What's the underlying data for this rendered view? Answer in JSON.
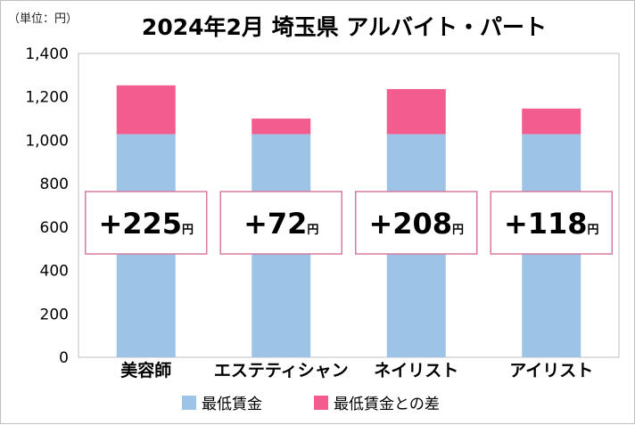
{
  "chart_data": {
    "type": "bar",
    "stacked": true,
    "title": "2024年2月 埼玉県 アルバイト・パート",
    "unit_label": "（単位：円）",
    "categories": [
      "美容師",
      "エステティシャン",
      "ネイリスト",
      "アイリスト"
    ],
    "series": [
      {
        "name": "最低賃金",
        "values": [
          1028,
          1028,
          1028,
          1028
        ],
        "color": "#9dc3e6"
      },
      {
        "name": "最低賃金との差",
        "values": [
          225,
          72,
          208,
          118
        ],
        "color": "#f25c8e"
      }
    ],
    "annotations": [
      {
        "prefix": "+",
        "value": "225",
        "suffix": "円"
      },
      {
        "prefix": "+",
        "value": "72",
        "suffix": "円"
      },
      {
        "prefix": "+",
        "value": "208",
        "suffix": "円"
      },
      {
        "prefix": "+",
        "value": "118",
        "suffix": "円"
      }
    ],
    "ylim": [
      0,
      1400
    ],
    "yticks": [
      "0",
      "200",
      "400",
      "600",
      "800",
      "1,000",
      "1,200",
      "1,400"
    ],
    "grid": false,
    "legend": "bottom"
  }
}
